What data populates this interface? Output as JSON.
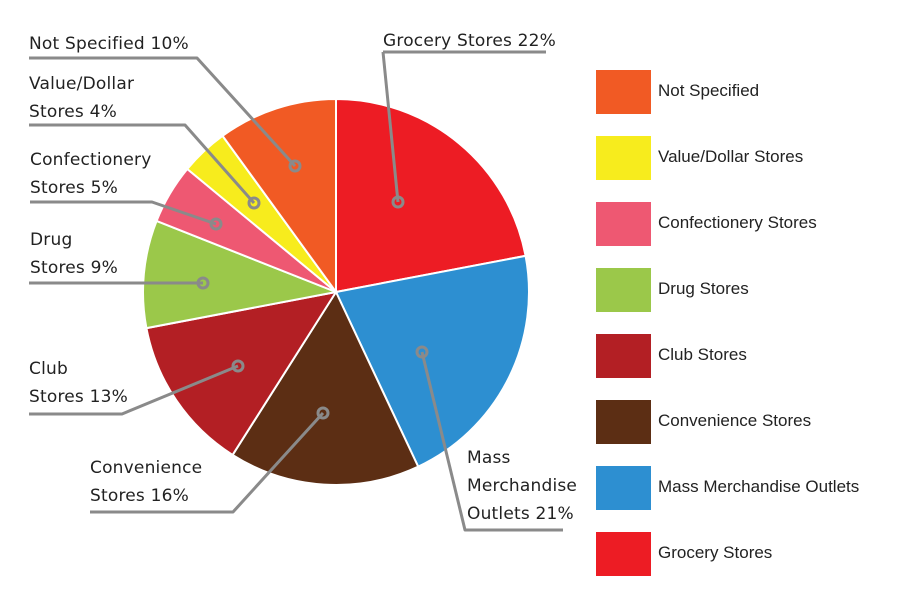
{
  "chart_data": {
    "type": "pie",
    "title": "",
    "start_angle_deg": 0,
    "direction": "clockwise",
    "slices": [
      {
        "label": "Grocery Stores",
        "value": 22,
        "color": "#ED1C24"
      },
      {
        "label": "Mass Merchandise Outlets",
        "value": 21,
        "color": "#2D8FD1"
      },
      {
        "label": "Convenience Stores",
        "value": 16,
        "color": "#5C2E14"
      },
      {
        "label": "Club Stores",
        "value": 13,
        "color": "#B31F24"
      },
      {
        "label": "Drug Stores",
        "value": 9,
        "color": "#9BC84A"
      },
      {
        "label": "Confectionery Stores",
        "value": 5,
        "color": "#EE5872"
      },
      {
        "label": "Value/Dollar Stores",
        "value": 4,
        "color": "#F7EC1D"
      },
      {
        "label": "Not Specified",
        "value": 10,
        "color": "#F15A24"
      }
    ],
    "legend_position": "right",
    "grid": false
  },
  "callouts": {
    "grocery": {
      "lines": [
        "Grocery Stores 22%"
      ]
    },
    "mass": {
      "lines": [
        "Mass",
        "Merchandise",
        "Outlets 21%"
      ]
    },
    "convenience": {
      "lines": [
        "Convenience",
        "Stores 16%"
      ]
    },
    "club": {
      "lines": [
        "Club",
        "Stores 13%"
      ]
    },
    "drug": {
      "lines": [
        "Drug",
        "Stores 9%"
      ]
    },
    "confectionery": {
      "lines": [
        "Confectionery",
        "Stores 5%"
      ]
    },
    "value": {
      "lines": [
        "Value/Dollar",
        "Stores 4%"
      ]
    },
    "notspec": {
      "lines": [
        "Not Specified 10%"
      ]
    }
  },
  "legend": {
    "items": [
      {
        "label": "Not Specified",
        "color": "#F15A24"
      },
      {
        "label": "Value/Dollar Stores",
        "color": "#F7EC1D"
      },
      {
        "label": "Confectionery Stores",
        "color": "#EE5872"
      },
      {
        "label": "Drug Stores",
        "color": "#9BC84A"
      },
      {
        "label": "Club Stores",
        "color": "#B31F24"
      },
      {
        "label": "Convenience Stores",
        "color": "#5C2E14"
      },
      {
        "label": "Mass Merchandise Outlets",
        "color": "#2D8FD1"
      },
      {
        "label": "Grocery Stores",
        "color": "#ED1C24"
      }
    ]
  },
  "style": {
    "leader_color": "#8A8A8A"
  }
}
